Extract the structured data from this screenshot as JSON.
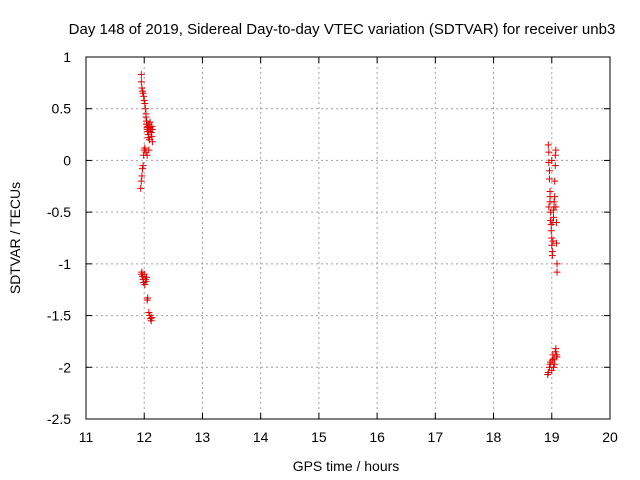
{
  "chart_data": {
    "type": "scatter",
    "title": "Day 148 of 2019, Sidereal Day-to-day VTEC variation (SDTVAR) for receiver unb3",
    "xlabel": "GPS time / hours",
    "ylabel": "SDTVAR / TECUs",
    "xlim": [
      11,
      20
    ],
    "ylim": [
      -2.5,
      1
    ],
    "xticks": [
      11,
      12,
      13,
      14,
      15,
      16,
      17,
      18,
      19,
      20
    ],
    "xtick_labels": [
      "11",
      "12",
      "13",
      "14",
      "15",
      "16",
      "17",
      "18",
      "19",
      "20"
    ],
    "yticks": [
      1,
      0.5,
      0,
      -0.5,
      -1,
      -1.5,
      -2,
      -2.5
    ],
    "ytick_labels": [
      "1",
      "0.5",
      "0",
      "-0.5",
      "-1",
      "-1.5",
      "-2",
      "-2.5"
    ],
    "grid": true,
    "marker": "+",
    "marker_color": "#e00000",
    "series": [
      {
        "name": "SDTVAR",
        "x": [
          11.95,
          11.95,
          11.96,
          11.97,
          11.98,
          11.99,
          12.0,
          12.01,
          12.02,
          12.03,
          12.03,
          12.04,
          12.04,
          12.05,
          12.05,
          12.06,
          12.06,
          12.07,
          12.07,
          12.08,
          12.08,
          12.09,
          12.1,
          12.1,
          12.11,
          12.12,
          12.13,
          12.13,
          12.14,
          12.14,
          11.94,
          11.95,
          11.96,
          11.97,
          11.98,
          11.99,
          12.0,
          12.01,
          12.03,
          12.05,
          12.08,
          11.95,
          11.96,
          11.97,
          11.98,
          11.99,
          12.0,
          12.01,
          12.02,
          12.03,
          12.04,
          12.05,
          12.06,
          12.08,
          12.1,
          12.11,
          12.12,
          12.13,
          18.94,
          18.95,
          18.95,
          18.96,
          18.96,
          18.97,
          18.97,
          18.98,
          18.98,
          18.99,
          18.99,
          19.0,
          19.0,
          19.01,
          19.01,
          19.02,
          19.02,
          19.03,
          19.03,
          19.04,
          19.04,
          19.05,
          19.05,
          19.06,
          19.06,
          19.07,
          19.07,
          19.08,
          19.08,
          19.09,
          19.09,
          18.95,
          18.97,
          19.0,
          18.93,
          18.94,
          18.96,
          18.97,
          18.98,
          19.0,
          19.01,
          19.02,
          19.03,
          19.04,
          19.05,
          19.06,
          19.07,
          19.08,
          19.09
        ],
        "y": [
          0.83,
          0.76,
          0.7,
          0.67,
          0.65,
          0.62,
          0.58,
          0.55,
          0.5,
          0.45,
          0.42,
          0.38,
          0.35,
          0.32,
          0.3,
          0.28,
          0.33,
          0.25,
          0.22,
          0.28,
          0.35,
          0.2,
          0.32,
          0.37,
          0.3,
          0.27,
          0.23,
          0.33,
          0.3,
          0.18,
          -0.27,
          -0.2,
          -0.15,
          -0.08,
          -0.05,
          0.05,
          0.1,
          0.12,
          0.08,
          0.05,
          0.1,
          -1.1,
          -1.08,
          -1.12,
          -1.15,
          -1.18,
          -1.1,
          -1.2,
          -1.15,
          -1.17,
          -1.13,
          -1.35,
          -1.33,
          -1.47,
          -1.5,
          -1.53,
          -1.55,
          -1.52,
          0.15,
          0.08,
          -0.02,
          -0.1,
          -0.18,
          -0.3,
          -0.4,
          -0.5,
          -0.58,
          -0.62,
          -0.68,
          -0.75,
          -0.82,
          -0.88,
          -0.92,
          -0.78,
          -0.6,
          -0.55,
          -0.48,
          -0.45,
          -0.4,
          -0.35,
          -0.2,
          -0.05,
          0.05,
          0.1,
          -0.45,
          -0.6,
          -0.8,
          -1.0,
          -1.08,
          -0.45,
          -0.35,
          0.0,
          -2.07,
          -2.05,
          -2.0,
          -1.97,
          -1.95,
          -2.03,
          -1.93,
          -1.88,
          -2.0,
          -1.92,
          -1.97,
          -1.85,
          -1.82,
          -1.88,
          -1.9
        ]
      }
    ]
  }
}
